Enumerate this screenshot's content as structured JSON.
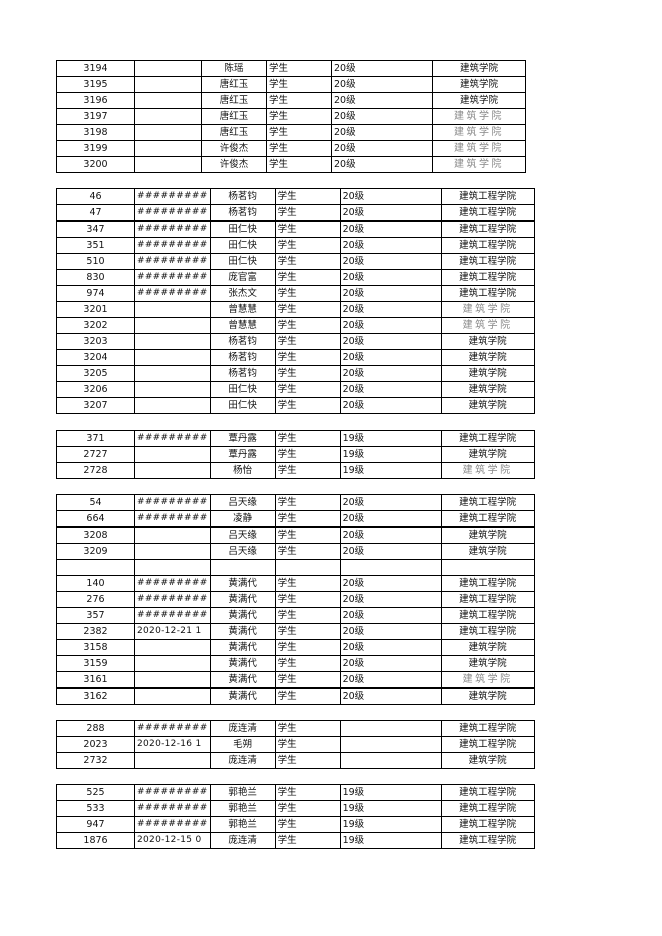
{
  "blocks": [
    {
      "rows": [
        {
          "id": "3194",
          "date": "",
          "name": "陈瑶",
          "role": "学生",
          "grade": "20级",
          "college": "建筑学院",
          "alt": false
        },
        {
          "id": "3195",
          "date": "",
          "name": "唐红玉",
          "role": "学生",
          "grade": "20级",
          "college": "建筑学院",
          "alt": false
        },
        {
          "id": "3196",
          "date": "",
          "name": "唐红玉",
          "role": "学生",
          "grade": "20级",
          "college": "建筑学院",
          "alt": false
        },
        {
          "id": "3197",
          "date": "",
          "name": "唐红玉",
          "role": "学生",
          "grade": "20级",
          "college": "建筑学院",
          "alt": true
        },
        {
          "id": "3198",
          "date": "",
          "name": "唐红玉",
          "role": "学生",
          "grade": "20级",
          "college": "建筑学院",
          "alt": true
        },
        {
          "id": "3199",
          "date": "",
          "name": "许俊杰",
          "role": "学生",
          "grade": "20级",
          "college": "建筑学院",
          "alt": true
        },
        {
          "id": "3200",
          "date": "",
          "name": "许俊杰",
          "role": "学生",
          "grade": "20级",
          "college": "建筑学院",
          "alt": true
        }
      ]
    },
    {
      "rows": [
        {
          "id": "46",
          "date": "#########",
          "name": "杨茗钧",
          "role": "学生",
          "grade": "20级",
          "college": "建筑工程学院",
          "alt": false
        },
        {
          "id": "47",
          "date": "#########",
          "name": "杨茗钧",
          "role": "学生",
          "grade": "20级",
          "college": "建筑工程学院",
          "alt": false
        },
        {
          "id": "347",
          "date": "#########",
          "name": "田仁快",
          "role": "学生",
          "grade": "20级",
          "college": "建筑工程学院",
          "alt": false
        },
        {
          "id": "351",
          "date": "#########",
          "name": "田仁快",
          "role": "学生",
          "grade": "20级",
          "college": "建筑工程学院",
          "alt": false
        },
        {
          "id": "510",
          "date": "#########",
          "name": "田仁快",
          "role": "学生",
          "grade": "20级",
          "college": "建筑工程学院",
          "alt": false
        },
        {
          "id": "830",
          "date": "#########",
          "name": "庞官富",
          "role": "学生",
          "grade": "20级",
          "college": "建筑工程学院",
          "alt": false
        },
        {
          "id": "974",
          "date": "#########",
          "name": "张杰文",
          "role": "学生",
          "grade": "20级",
          "college": "建筑工程学院",
          "alt": false
        },
        {
          "id": "3201",
          "date": "",
          "name": "曾慧慧",
          "role": "学生",
          "grade": "20级",
          "college": "建筑学院",
          "alt": true
        },
        {
          "id": "3202",
          "date": "",
          "name": "曾慧慧",
          "role": "学生",
          "grade": "20级",
          "college": "建筑学院",
          "alt": true
        },
        {
          "id": "3203",
          "date": "",
          "name": "杨茗钧",
          "role": "学生",
          "grade": "20级",
          "college": "建筑学院",
          "alt": false
        },
        {
          "id": "3204",
          "date": "",
          "name": "杨茗钧",
          "role": "学生",
          "grade": "20级",
          "college": "建筑学院",
          "alt": false
        },
        {
          "id": "3205",
          "date": "",
          "name": "杨茗钧",
          "role": "学生",
          "grade": "20级",
          "college": "建筑学院",
          "alt": false
        },
        {
          "id": "3206",
          "date": "",
          "name": "田仁快",
          "role": "学生",
          "grade": "20级",
          "college": "建筑学院",
          "alt": false
        },
        {
          "id": "3207",
          "date": "",
          "name": "田仁快",
          "role": "学生",
          "grade": "20级",
          "college": "建筑学院",
          "alt": false
        }
      ]
    },
    {
      "rows": [
        {
          "id": "371",
          "date": "#########",
          "name": "覃丹露",
          "role": "学生",
          "grade": "19级",
          "college": "建筑工程学院",
          "alt": false
        },
        {
          "id": "2727",
          "date": "",
          "name": "覃丹露",
          "role": "学生",
          "grade": "19级",
          "college": "建筑学院",
          "alt": false
        },
        {
          "id": "2728",
          "date": "",
          "name": "杨怡",
          "role": "学生",
          "grade": "19级",
          "college": "建筑学院",
          "alt": true
        }
      ]
    },
    {
      "rows": [
        {
          "id": "54",
          "date": "#########",
          "name": "吕天缘",
          "role": "学生",
          "grade": "20级",
          "college": "建筑工程学院",
          "alt": false
        },
        {
          "id": "664",
          "date": "#########",
          "name": "凌静",
          "role": "学生",
          "grade": "20级",
          "college": "建筑工程学院",
          "alt": false
        },
        {
          "id": "3208",
          "date": "",
          "name": "吕天缘",
          "role": "学生",
          "grade": "20级",
          "college": "建筑学院",
          "alt": false
        },
        {
          "id": "3209",
          "date": "",
          "name": "吕天缘",
          "role": "学生",
          "grade": "20级",
          "college": "建筑学院",
          "alt": false
        },
        {
          "id": "",
          "date": "",
          "name": "",
          "role": "",
          "grade": "",
          "college": "",
          "alt": false
        },
        {
          "id": "140",
          "date": "#########",
          "name": "黄满代",
          "role": "学生",
          "grade": "20级",
          "college": "建筑工程学院",
          "alt": false
        },
        {
          "id": "276",
          "date": "#########",
          "name": "黄满代",
          "role": "学生",
          "grade": "20级",
          "college": "建筑工程学院",
          "alt": false
        },
        {
          "id": "357",
          "date": "#########",
          "name": "黄满代",
          "role": "学生",
          "grade": "20级",
          "college": "建筑工程学院",
          "alt": false
        },
        {
          "id": "2382",
          "date": "2020-12-21 1",
          "name": "黄满代",
          "role": "学生",
          "grade": "20级",
          "college": "建筑工程学院",
          "alt": false
        },
        {
          "id": "3158",
          "date": "",
          "name": "黄满代",
          "role": "学生",
          "grade": "20级",
          "college": "建筑学院",
          "alt": false
        },
        {
          "id": "3159",
          "date": "",
          "name": "黄满代",
          "role": "学生",
          "grade": "20级",
          "college": "建筑学院",
          "alt": false
        },
        {
          "id": "3161",
          "date": "",
          "name": "黄满代",
          "role": "学生",
          "grade": "20级",
          "college": "建筑学院",
          "alt": true
        },
        {
          "id": "3162",
          "date": "",
          "name": "黄满代",
          "role": "学生",
          "grade": "20级",
          "college": "建筑学院",
          "alt": false
        }
      ]
    },
    {
      "rows": [
        {
          "id": "288",
          "date": "#########",
          "name": "庞连清",
          "role": "学生",
          "grade": "",
          "college": "建筑工程学院",
          "alt": false
        },
        {
          "id": "2023",
          "date": "2020-12-16 1",
          "name": "毛朔",
          "role": "学生",
          "grade": "",
          "college": "建筑工程学院",
          "alt": false
        },
        {
          "id": "2732",
          "date": "",
          "name": "庞连清",
          "role": "学生",
          "grade": "",
          "college": "建筑学院",
          "alt": false
        }
      ]
    },
    {
      "rows": [
        {
          "id": "525",
          "date": "#########",
          "name": "郭艳兰",
          "role": "学生",
          "grade": "19级",
          "college": "建筑工程学院",
          "alt": false
        },
        {
          "id": "533",
          "date": "#########",
          "name": "郭艳兰",
          "role": "学生",
          "grade": "19级",
          "college": "建筑工程学院",
          "alt": false
        },
        {
          "id": "947",
          "date": "#########",
          "name": "郭艳兰",
          "role": "学生",
          "grade": "19级",
          "college": "建筑工程学院",
          "alt": false
        },
        {
          "id": "1876",
          "date": "2020-12-15 0",
          "name": "庞连清",
          "role": "学生",
          "grade": "19级",
          "college": "建筑工程学院",
          "alt": false
        }
      ]
    }
  ]
}
